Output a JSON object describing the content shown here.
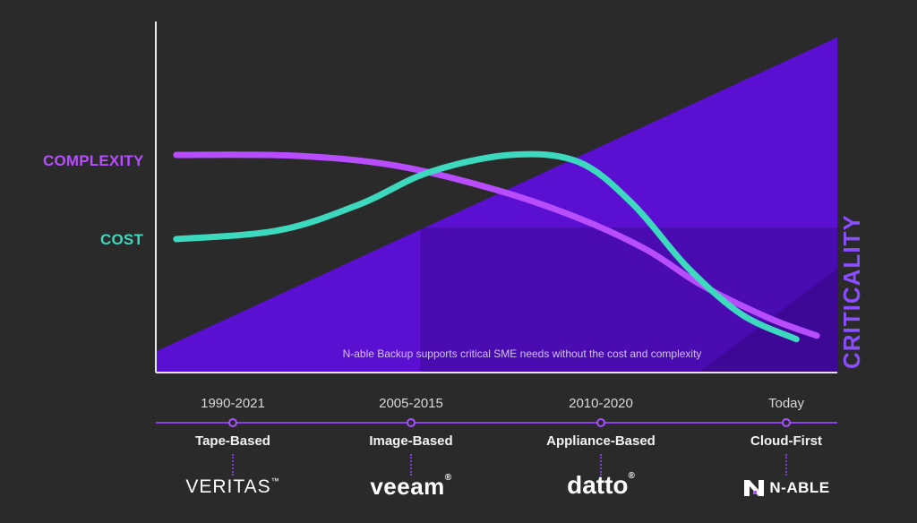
{
  "chart_data": {
    "type": "line",
    "series": [
      {
        "name": "COMPLEXITY",
        "color": "#b84dff",
        "points": [
          [
            0.03,
            0.62
          ],
          [
            0.2,
            0.618
          ],
          [
            0.35,
            0.59
          ],
          [
            0.5,
            0.52
          ],
          [
            0.62,
            0.44
          ],
          [
            0.72,
            0.35
          ],
          [
            0.8,
            0.25
          ],
          [
            0.9,
            0.155
          ],
          [
            0.97,
            0.105
          ]
        ]
      },
      {
        "name": "COST",
        "color": "#3dd9bf",
        "points": [
          [
            0.03,
            0.38
          ],
          [
            0.18,
            0.405
          ],
          [
            0.3,
            0.48
          ],
          [
            0.4,
            0.57
          ],
          [
            0.52,
            0.62
          ],
          [
            0.62,
            0.6
          ],
          [
            0.7,
            0.48
          ],
          [
            0.78,
            0.3
          ],
          [
            0.86,
            0.165
          ],
          [
            0.94,
            0.095
          ]
        ]
      }
    ],
    "area": {
      "name": "CRITICALITY",
      "color": "#5a0fd1",
      "from": 0.06,
      "to": 0.955
    },
    "caption": "N-able Backup supports critical SME needs without the cost and complexity"
  },
  "timeline": {
    "color": "#8b3fe8",
    "eras": [
      {
        "years": "1990-2021",
        "type": "Tape-Based",
        "brand": "VERITAS"
      },
      {
        "years": "2005-2015",
        "type": "Image-Based",
        "brand": "veeam"
      },
      {
        "years": "2010-2020",
        "type": "Appliance-Based",
        "brand": "datto"
      },
      {
        "years": "Today",
        "type": "Cloud-First",
        "brand": "N-ABLE"
      }
    ]
  }
}
